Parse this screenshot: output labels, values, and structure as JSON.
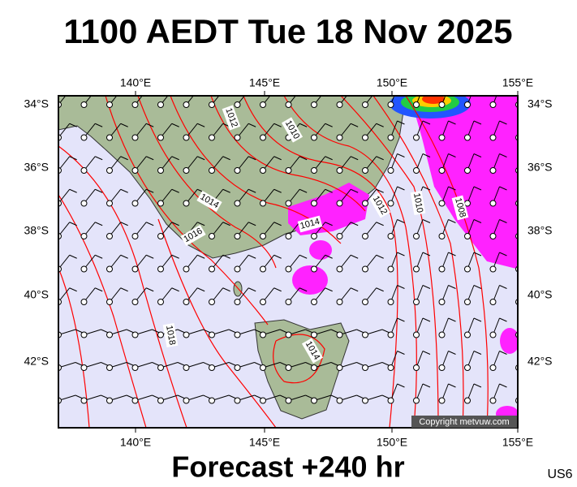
{
  "header": {
    "title": "1100 AEDT Tue 18 Nov 2025"
  },
  "map": {
    "lon_labels": [
      "140°E",
      "145°E",
      "150°E",
      "155°E"
    ],
    "lat_labels": [
      "34°S",
      "36°S",
      "38°S",
      "40°S",
      "42°S"
    ],
    "isobar_labels": [
      "1012",
      "1010",
      "1014",
      "1016",
      "1014",
      "1012",
      "1010",
      "1008",
      "1018",
      "1014"
    ],
    "copyright": "Copyright metvuw.com"
  },
  "footer": {
    "forecast": "Forecast +240 hr",
    "code": "US6"
  }
}
